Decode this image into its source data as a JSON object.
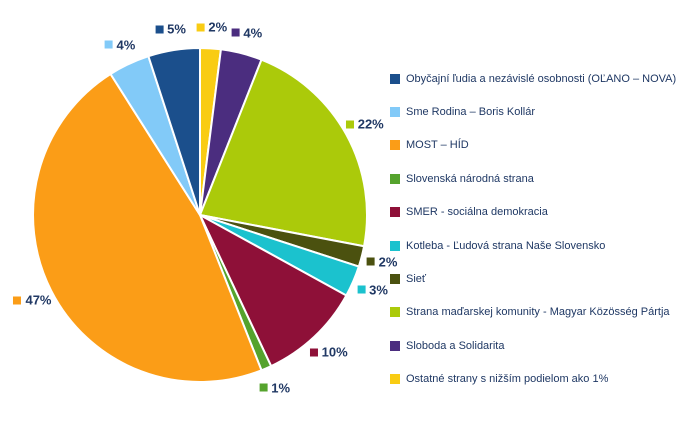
{
  "chart_data": {
    "type": "pie",
    "title": "",
    "start_angle_deg": 0,
    "direction": "counterclockwise",
    "legend_position": "right",
    "grid": false,
    "background_color": "#FFFFFF",
    "data_label_text_color": "#203864",
    "legend_text_color": "#1F3864",
    "series": [
      {
        "label": "Obyčajní ľudia a nezávislé osobnosti (OĽANO – NOVA)",
        "value": 5,
        "value_label": "5%",
        "color": "#1B4F8C"
      },
      {
        "label": "Sme Rodina – Boris Kollár",
        "value": 4,
        "value_label": "4%",
        "color": "#82CAF8"
      },
      {
        "label": "MOST – HÍD",
        "value": 47,
        "value_label": "47%",
        "color": "#FB9D17"
      },
      {
        "label": "Slovenská národná strana",
        "value": 1,
        "value_label": "1%",
        "color": "#55A32D"
      },
      {
        "label": "SMER - sociálna demokracia",
        "value": 10,
        "value_label": "10%",
        "color": "#8E1038"
      },
      {
        "label": "Kotleba - Ľudová strana Naše Slovensko",
        "value": 3,
        "value_label": "3%",
        "color": "#1BC2CE"
      },
      {
        "label": "Sieť",
        "value": 2,
        "value_label": "2%",
        "color": "#4B510F"
      },
      {
        "label": "Strana maďarskej komunity - Magyar Közösség Pártja",
        "value": 22,
        "value_label": "22%",
        "color": "#ABCA0A"
      },
      {
        "label": "Sloboda a Solidarita",
        "value": 4,
        "value_label": "4%",
        "color": "#4B2D7F"
      },
      {
        "label": "Ostatné strany s nižším podielom ako 1%",
        "value": 2,
        "value_label": "2%",
        "color": "#F9CC13"
      }
    ]
  }
}
